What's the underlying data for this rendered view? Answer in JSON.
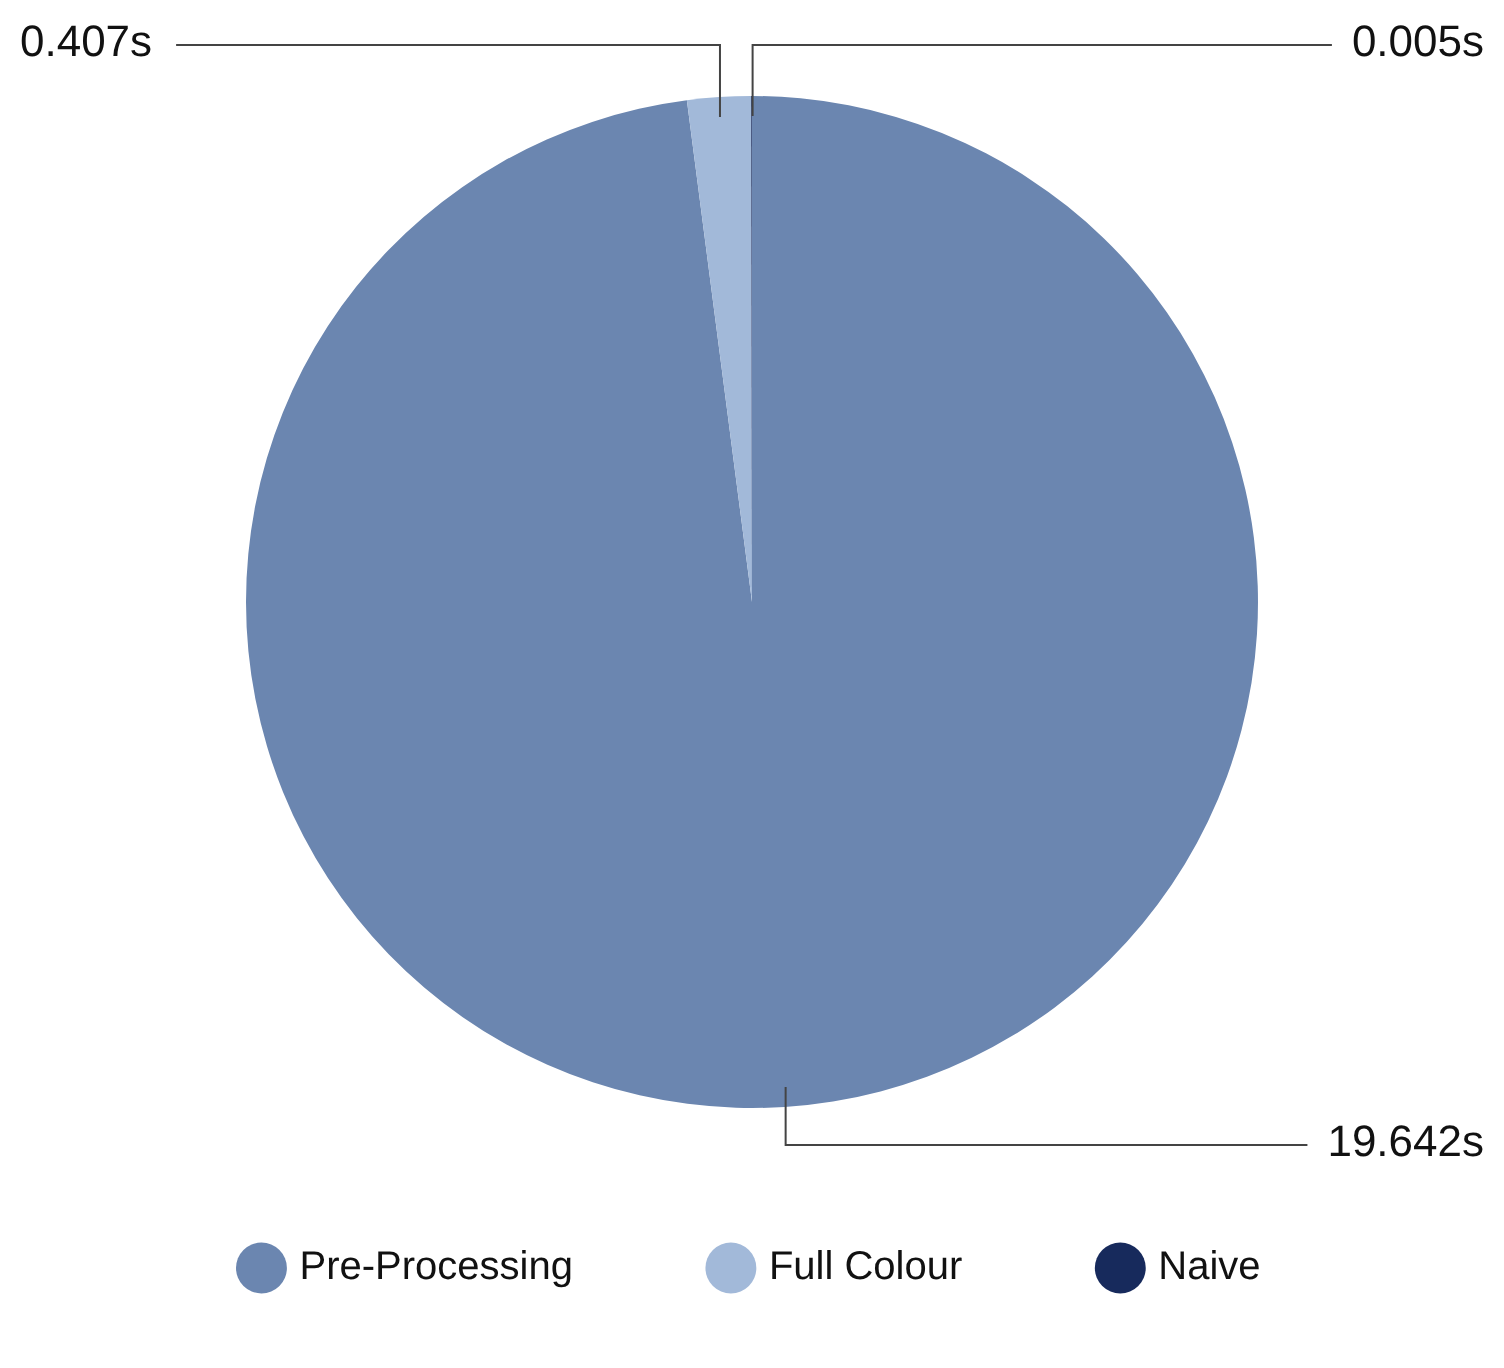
{
  "chart_data": {
    "type": "pie",
    "categories": [
      "Pre-Processing",
      "Full Colour",
      "Naive"
    ],
    "values": [
      19.642,
      0.407,
      0.005
    ],
    "colors": [
      "#6b86b0",
      "#a2b9d9",
      "#172a5c"
    ],
    "value_labels": [
      "19.642s",
      "0.407s",
      "0.005s"
    ],
    "legend": "bottom"
  }
}
